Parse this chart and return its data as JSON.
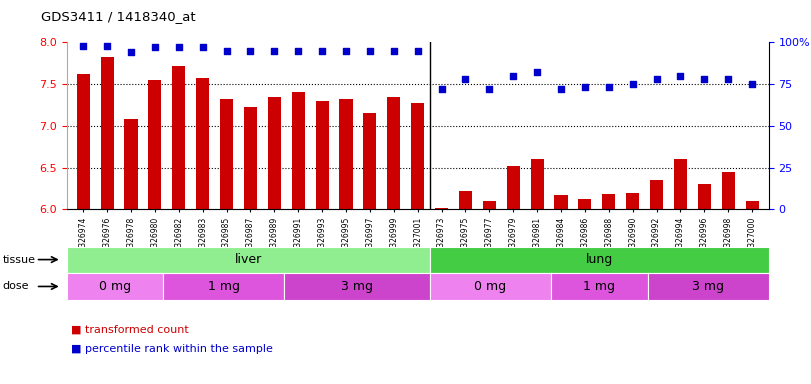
{
  "title": "GDS3411 / 1418340_at",
  "samples": [
    "GSM326974",
    "GSM326976",
    "GSM326978",
    "GSM326980",
    "GSM326982",
    "GSM326983",
    "GSM326985",
    "GSM326987",
    "GSM326989",
    "GSM326991",
    "GSM326993",
    "GSM326995",
    "GSM326997",
    "GSM326999",
    "GSM327001",
    "GSM326973",
    "GSM326975",
    "GSM326977",
    "GSM326979",
    "GSM326981",
    "GSM326984",
    "GSM326986",
    "GSM326988",
    "GSM326990",
    "GSM326992",
    "GSM326994",
    "GSM326996",
    "GSM326998",
    "GSM327000"
  ],
  "red_values": [
    7.62,
    7.82,
    7.08,
    7.55,
    7.72,
    7.57,
    7.32,
    7.22,
    7.35,
    7.4,
    7.3,
    7.32,
    7.15,
    7.35,
    7.27,
    6.02,
    6.22,
    6.1,
    6.52,
    6.6,
    6.17,
    6.12,
    6.18,
    6.2,
    6.35,
    6.6,
    6.3,
    6.45,
    6.1
  ],
  "blue_values": [
    98,
    98,
    94,
    97,
    97,
    97,
    95,
    95,
    95,
    95,
    95,
    95,
    95,
    95,
    95,
    72,
    78,
    72,
    80,
    82,
    72,
    73,
    73,
    75,
    78,
    80,
    78,
    78,
    75
  ],
  "ylim_left": [
    6.0,
    8.0
  ],
  "ylim_right": [
    0,
    100
  ],
  "yticks_left": [
    6.0,
    6.5,
    7.0,
    7.5,
    8.0
  ],
  "yticks_right": [
    0,
    25,
    50,
    75,
    100
  ],
  "bar_color": "#cc0000",
  "dot_color": "#0000cc",
  "tissue_groups": [
    {
      "label": "liver",
      "start": 0,
      "end": 15,
      "color": "#90ee90"
    },
    {
      "label": "lung",
      "start": 15,
      "end": 29,
      "color": "#44cc44"
    }
  ],
  "dose_groups": [
    {
      "label": "0 mg",
      "start": 0,
      "end": 4,
      "color": "#ee82ee"
    },
    {
      "label": "1 mg",
      "start": 4,
      "end": 9,
      "color": "#dd55dd"
    },
    {
      "label": "3 mg",
      "start": 9,
      "end": 15,
      "color": "#cc44cc"
    },
    {
      "label": "0 mg",
      "start": 15,
      "end": 20,
      "color": "#ee82ee"
    },
    {
      "label": "1 mg",
      "start": 20,
      "end": 24,
      "color": "#dd55dd"
    },
    {
      "label": "3 mg",
      "start": 24,
      "end": 29,
      "color": "#cc44cc"
    }
  ],
  "n_samples": 29,
  "tissue_label": "tissue",
  "dose_label": "dose"
}
